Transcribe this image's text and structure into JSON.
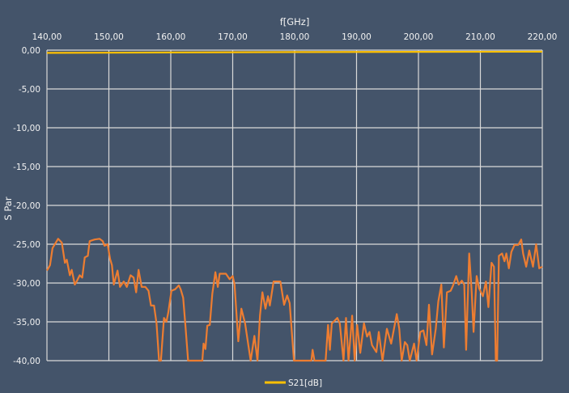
{
  "chart_data": {
    "type": "line",
    "xlabel": "f[GHz]",
    "ylabel": "S Par",
    "xlim": [
      140,
      220
    ],
    "ylim": [
      -40,
      0
    ],
    "x_ticks": [
      "140,00",
      "150,00",
      "160,00",
      "170,00",
      "180,00",
      "190,00",
      "200,00",
      "210,00",
      "220,00"
    ],
    "y_ticks": [
      "0,00",
      "-5,00",
      "-10,00",
      "-15,00",
      "-20,00",
      "-25,00",
      "-30,00",
      "-35,00",
      "-40,00"
    ],
    "x_axis_position": "top",
    "grid": true,
    "legend_position": "bottom",
    "background_color": "#44546A",
    "series": [
      {
        "name": "S21[dB]",
        "color": "#FFC000",
        "points": [
          [
            140,
            -0.35
          ],
          [
            160,
            -0.3
          ],
          [
            180,
            -0.25
          ],
          [
            200,
            -0.22
          ],
          [
            220,
            -0.2
          ]
        ]
      },
      {
        "color": "#ED7D31",
        "points": [
          [
            140,
            -28.4
          ],
          [
            140.5,
            -27.7
          ],
          [
            140.9,
            -25.5
          ],
          [
            141.8,
            -24.3
          ],
          [
            142.4,
            -24.8
          ],
          [
            142.9,
            -27.4
          ],
          [
            143.2,
            -27.0
          ],
          [
            143.7,
            -29.0
          ],
          [
            144.0,
            -28.3
          ],
          [
            144.5,
            -30.2
          ],
          [
            144.8,
            -29.8
          ],
          [
            145.3,
            -29.0
          ],
          [
            145.7,
            -29.3
          ],
          [
            146.1,
            -26.7
          ],
          [
            146.6,
            -26.5
          ],
          [
            146.9,
            -24.6
          ],
          [
            147.7,
            -24.4
          ],
          [
            148.5,
            -24.3
          ],
          [
            149.0,
            -24.6
          ],
          [
            149.3,
            -25.2
          ],
          [
            149.8,
            -25.0
          ],
          [
            150.2,
            -26.9
          ],
          [
            150.5,
            -27.7
          ],
          [
            150.8,
            -30.2
          ],
          [
            151.4,
            -28.4
          ],
          [
            151.8,
            -30.5
          ],
          [
            152.4,
            -29.8
          ],
          [
            152.9,
            -30.5
          ],
          [
            153.5,
            -29.0
          ],
          [
            154.0,
            -29.3
          ],
          [
            154.4,
            -31.2
          ],
          [
            154.8,
            -28.3
          ],
          [
            155.3,
            -30.5
          ],
          [
            155.9,
            -30.5
          ],
          [
            156.4,
            -31.0
          ],
          [
            156.8,
            -32.9
          ],
          [
            157.3,
            -32.9
          ],
          [
            157.7,
            -35.2
          ],
          [
            158.1,
            -40
          ],
          [
            158.4,
            -40
          ],
          [
            158.9,
            -34.5
          ],
          [
            159.3,
            -35
          ],
          [
            159.6,
            -33.8
          ],
          [
            160.1,
            -31
          ],
          [
            160.7,
            -30.8
          ],
          [
            161.3,
            -30.3
          ],
          [
            161.6,
            -30.8
          ],
          [
            162.0,
            -31.9
          ],
          [
            162.4,
            -35.9
          ],
          [
            162.8,
            -40
          ],
          [
            165.1,
            -40
          ],
          [
            165.3,
            -37.8
          ],
          [
            165.6,
            -38.5
          ],
          [
            165.9,
            -35.5
          ],
          [
            166.3,
            -35.4
          ],
          [
            166.7,
            -31.4
          ],
          [
            167.2,
            -28.6
          ],
          [
            167.6,
            -30.5
          ],
          [
            167.9,
            -28.8
          ],
          [
            168.9,
            -28.8
          ],
          [
            169.5,
            -29.5
          ],
          [
            170.0,
            -29.1
          ],
          [
            170.3,
            -30.2
          ],
          [
            170.9,
            -37.5
          ],
          [
            171.4,
            -33.3
          ],
          [
            172.0,
            -35.2
          ],
          [
            172.9,
            -40
          ],
          [
            173.5,
            -36.8
          ],
          [
            174.0,
            -40
          ],
          [
            174.4,
            -34.2
          ],
          [
            174.8,
            -31.2
          ],
          [
            175.3,
            -33.3
          ],
          [
            175.7,
            -31.7
          ],
          [
            176.0,
            -32.9
          ],
          [
            176.6,
            -29.8
          ],
          [
            177.7,
            -29.8
          ],
          [
            178.3,
            -32.8
          ],
          [
            178.8,
            -31.6
          ],
          [
            179.2,
            -32.6
          ],
          [
            179.9,
            -40
          ],
          [
            182.7,
            -40
          ],
          [
            182.9,
            -38.6
          ],
          [
            183.2,
            -40
          ],
          [
            185.0,
            -40
          ],
          [
            185.4,
            -35.4
          ],
          [
            185.7,
            -38.6
          ],
          [
            186.0,
            -35.2
          ],
          [
            186.4,
            -34.9
          ],
          [
            186.9,
            -34.5
          ],
          [
            187.3,
            -35.2
          ],
          [
            187.9,
            -40
          ],
          [
            188.3,
            -34.5
          ],
          [
            188.7,
            -40
          ],
          [
            189.3,
            -34.2
          ],
          [
            189.7,
            -40
          ],
          [
            190.1,
            -35.4
          ],
          [
            190.6,
            -39
          ],
          [
            191.2,
            -35.2
          ],
          [
            191.7,
            -36.9
          ],
          [
            192.1,
            -36.3
          ],
          [
            192.5,
            -38
          ],
          [
            193.2,
            -38.9
          ],
          [
            193.6,
            -36.3
          ],
          [
            194.2,
            -40
          ],
          [
            194.9,
            -35.9
          ],
          [
            195.6,
            -37.8
          ],
          [
            196.5,
            -34.0
          ],
          [
            196.9,
            -35.9
          ],
          [
            197.3,
            -40
          ],
          [
            197.8,
            -37.6
          ],
          [
            198.2,
            -38
          ],
          [
            198.6,
            -40
          ],
          [
            199.3,
            -37.8
          ],
          [
            199.7,
            -40
          ],
          [
            200.3,
            -36.3
          ],
          [
            200.8,
            -36.1
          ],
          [
            201.3,
            -38
          ],
          [
            201.7,
            -32.8
          ],
          [
            202.2,
            -39.2
          ],
          [
            202.8,
            -35.9
          ],
          [
            203.2,
            -32.4
          ],
          [
            203.7,
            -30.2
          ],
          [
            204.1,
            -38.3
          ],
          [
            204.6,
            -31.2
          ],
          [
            205.2,
            -31.0
          ],
          [
            205.6,
            -30.3
          ],
          [
            206.1,
            -29.1
          ],
          [
            206.5,
            -30.2
          ],
          [
            207.0,
            -29.7
          ],
          [
            207.4,
            -30.2
          ],
          [
            207.7,
            -38.6
          ],
          [
            208.2,
            -26.2
          ],
          [
            208.6,
            -31.2
          ],
          [
            208.9,
            -36.3
          ],
          [
            209.4,
            -29.1
          ],
          [
            209.8,
            -30.7
          ],
          [
            210.4,
            -31.7
          ],
          [
            210.9,
            -29.8
          ],
          [
            211.3,
            -33.1
          ],
          [
            211.8,
            -27.4
          ],
          [
            212.2,
            -27.9
          ],
          [
            212.5,
            -40
          ],
          [
            212.7,
            -40
          ],
          [
            213.0,
            -26.5
          ],
          [
            213.5,
            -26.2
          ],
          [
            213.9,
            -27.2
          ],
          [
            214.2,
            -26.2
          ],
          [
            214.6,
            -28.1
          ],
          [
            215.0,
            -26.0
          ],
          [
            215.5,
            -25.1
          ],
          [
            216.1,
            -25.1
          ],
          [
            216.6,
            -24.4
          ],
          [
            216.9,
            -26.2
          ],
          [
            217.4,
            -27.9
          ],
          [
            217.9,
            -25.8
          ],
          [
            218.5,
            -27.9
          ],
          [
            219.0,
            -25.0
          ],
          [
            219.5,
            -28.1
          ],
          [
            220.0,
            -27.9
          ]
        ]
      }
    ]
  }
}
